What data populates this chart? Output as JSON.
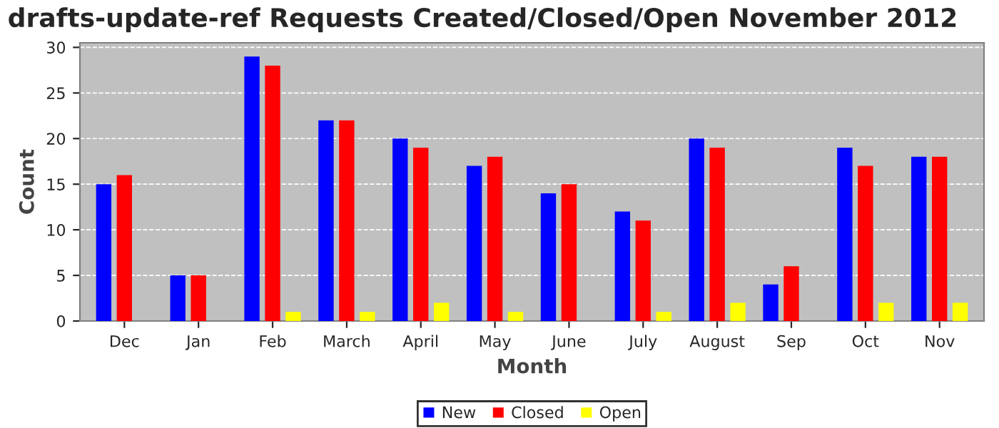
{
  "chart_data": {
    "type": "bar",
    "title": "drafts-update-ref Requests Created/Closed/Open November 2012",
    "xlabel": "Month",
    "ylabel": "Count",
    "categories": [
      "Dec",
      "Jan",
      "Feb",
      "March",
      "April",
      "May",
      "June",
      "July",
      "August",
      "Sep",
      "Oct",
      "Nov"
    ],
    "series": [
      {
        "name": "New",
        "color": "#0000ff",
        "values": [
          15,
          5,
          29,
          22,
          20,
          17,
          14,
          12,
          20,
          4,
          19,
          18
        ]
      },
      {
        "name": "Closed",
        "color": "#ff0000",
        "values": [
          16,
          5,
          28,
          22,
          19,
          18,
          15,
          11,
          19,
          6,
          17,
          18
        ]
      },
      {
        "name": "Open",
        "color": "#ffff00",
        "values": [
          0,
          0,
          1,
          1,
          2,
          1,
          0,
          1,
          2,
          0,
          2,
          2
        ]
      }
    ],
    "ylim": [
      0,
      30.5
    ],
    "yticks": [
      0,
      5,
      10,
      15,
      20,
      25,
      30
    ],
    "grid": "y",
    "legend": "bottom"
  }
}
